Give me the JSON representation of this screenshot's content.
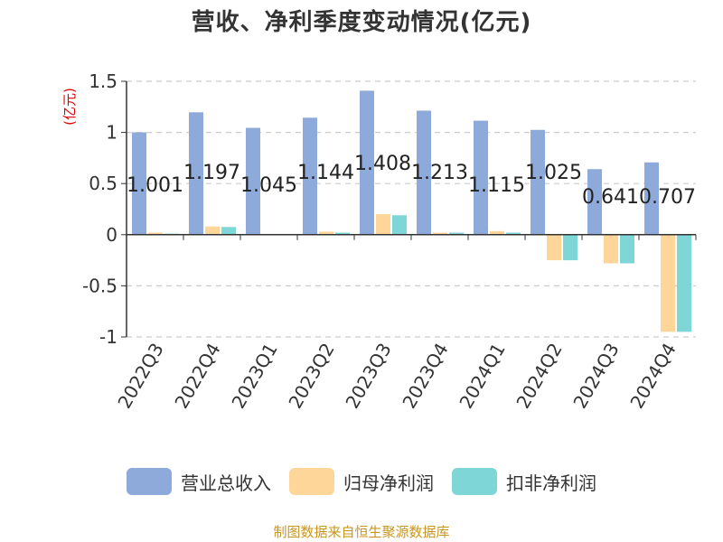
{
  "chart_data": {
    "type": "bar",
    "title": "营收、净利季度变动情况(亿元)",
    "ylabel": "(亿元)",
    "ylim": [
      -1,
      1.5
    ],
    "yticks": [
      "1.5",
      "1",
      "0.5",
      "0",
      "-0.5",
      "-1"
    ],
    "ytick_values": [
      1.5,
      1,
      0.5,
      0,
      -0.5,
      -1
    ],
    "grid": true,
    "legend_position": "bottom",
    "categories": [
      "2022Q3",
      "2022Q4",
      "2023Q1",
      "2023Q2",
      "2023Q3",
      "2023Q4",
      "2024Q1",
      "2024Q2",
      "2024Q3",
      "2024Q4"
    ],
    "series": [
      {
        "name": "营业总收入",
        "color": "#8eaadb",
        "values": [
          1.001,
          1.197,
          1.045,
          1.144,
          1.408,
          1.213,
          1.115,
          1.025,
          0.641,
          0.707
        ],
        "labels": [
          "1.001",
          "1.197",
          "1.045",
          "1.144",
          "1.408",
          "1.213",
          "1.115",
          "1.025",
          "0.641",
          "0.707"
        ]
      },
      {
        "name": "归母净利润",
        "color": "#ffd699",
        "values": [
          0.02,
          0.08,
          0.005,
          0.03,
          0.2,
          0.02,
          0.035,
          -0.25,
          -0.28,
          -0.95
        ]
      },
      {
        "name": "扣非净利润",
        "color": "#7fd6d6",
        "values": [
          0.01,
          0.075,
          0.005,
          0.02,
          0.19,
          0.02,
          0.02,
          -0.25,
          -0.28,
          -0.95
        ]
      }
    ]
  },
  "source": "制图数据来自恒生聚源数据库"
}
